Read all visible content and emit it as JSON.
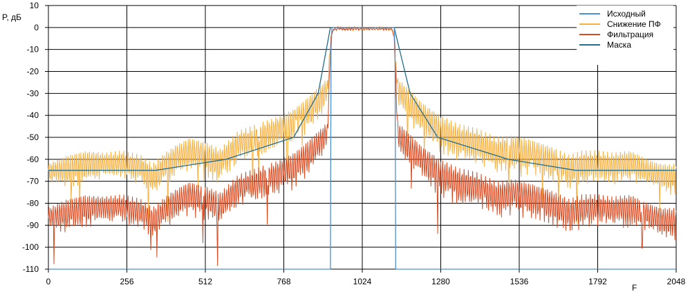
{
  "chart_data": {
    "type": "line",
    "xlabel": "F",
    "ylabel": "P, дБ",
    "xlim": [
      0,
      2048
    ],
    "ylim": [
      -110,
      10
    ],
    "xticks": [
      0,
      256,
      512,
      768,
      1024,
      1280,
      1536,
      1792,
      2048
    ],
    "yticks": [
      10,
      0,
      -10,
      -20,
      -30,
      -40,
      -50,
      -60,
      -70,
      -80,
      -90,
      -100,
      -110
    ],
    "grid": true,
    "legend_position": "top-right",
    "series": [
      {
        "name": "Исходный",
        "color": "#4a90d0",
        "x": [
          0,
          920,
          922,
          925,
          1128,
          1131,
          1133,
          2048
        ],
        "y": [
          -110,
          -110,
          -10,
          0,
          0,
          -10,
          -110,
          -110
        ]
      },
      {
        "name": "Снижение ПФ",
        "color": "#f5b041",
        "envelope_x": [
          0,
          60,
          120,
          180,
          240,
          300,
          340,
          380,
          420,
          460,
          512,
          560,
          620,
          680,
          740,
          800,
          850,
          880,
          910,
          922,
          930,
          1120,
          1128,
          1140,
          1170,
          1220,
          1280,
          1340,
          1400,
          1460,
          1520,
          1580,
          1640,
          1700,
          1740,
          1790,
          1840,
          1900,
          1960,
          2000,
          2048
        ],
        "envelope_top": [
          -62,
          -58,
          -56,
          -57,
          -56,
          -58,
          -62,
          -57,
          -53,
          -50,
          -52,
          -55,
          -47,
          -44,
          -41,
          -37,
          -31,
          -27,
          -23,
          -4,
          0,
          0,
          -4,
          -23,
          -27,
          -34,
          -40,
          -44,
          -46,
          -50,
          -49,
          -51,
          -54,
          -58,
          -56,
          -56,
          -57,
          -56,
          -60,
          -62,
          -62
        ],
        "envelope_bottom": [
          -70,
          -75,
          -72,
          -69,
          -70,
          -72,
          -77,
          -72,
          -68,
          -66,
          -68,
          -72,
          -62,
          -60,
          -56,
          -54,
          -48,
          -42,
          -37,
          -4,
          -1,
          -1,
          -4,
          -37,
          -43,
          -50,
          -58,
          -62,
          -63,
          -67,
          -66,
          -68,
          -70,
          -75,
          -72,
          -71,
          -72,
          -72,
          -73,
          -76,
          -77
        ]
      },
      {
        "name": "Фильтрация",
        "color": "#d9481e",
        "envelope_x": [
          0,
          60,
          120,
          180,
          240,
          300,
          340,
          380,
          420,
          460,
          512,
          560,
          620,
          680,
          740,
          800,
          850,
          880,
          910,
          922,
          930,
          1120,
          1128,
          1140,
          1170,
          1220,
          1280,
          1340,
          1400,
          1460,
          1520,
          1580,
          1640,
          1700,
          1740,
          1790,
          1840,
          1900,
          1960,
          2000,
          2048
        ],
        "envelope_top": [
          -82,
          -78,
          -76,
          -77,
          -76,
          -78,
          -82,
          -77,
          -73,
          -70,
          -72,
          -75,
          -67,
          -64,
          -61,
          -57,
          -51,
          -47,
          -43,
          -4,
          0,
          0,
          -4,
          -43,
          -47,
          -54,
          -60,
          -64,
          -66,
          -70,
          -69,
          -71,
          -74,
          -78,
          -76,
          -76,
          -77,
          -76,
          -80,
          -82,
          -82
        ],
        "envelope_bottom": [
          -92,
          -95,
          -92,
          -89,
          -90,
          -92,
          -97,
          -92,
          -88,
          -86,
          -88,
          -92,
          -82,
          -80,
          -76,
          -74,
          -68,
          -62,
          -57,
          -4,
          -1,
          -1,
          -4,
          -57,
          -63,
          -70,
          -78,
          -82,
          -83,
          -87,
          -86,
          -88,
          -90,
          -95,
          -92,
          -91,
          -92,
          -92,
          -93,
          -96,
          -97
        ]
      },
      {
        "name": "Маска",
        "color": "#1f6e8c",
        "x": [
          0,
          350,
          580,
          800,
          880,
          920,
          1128,
          1180,
          1270,
          1500,
          1720,
          2048
        ],
        "y": [
          -65,
          -65,
          -60,
          -50,
          -30,
          0,
          0,
          -30,
          -50,
          -60,
          -65,
          -65
        ]
      }
    ]
  }
}
